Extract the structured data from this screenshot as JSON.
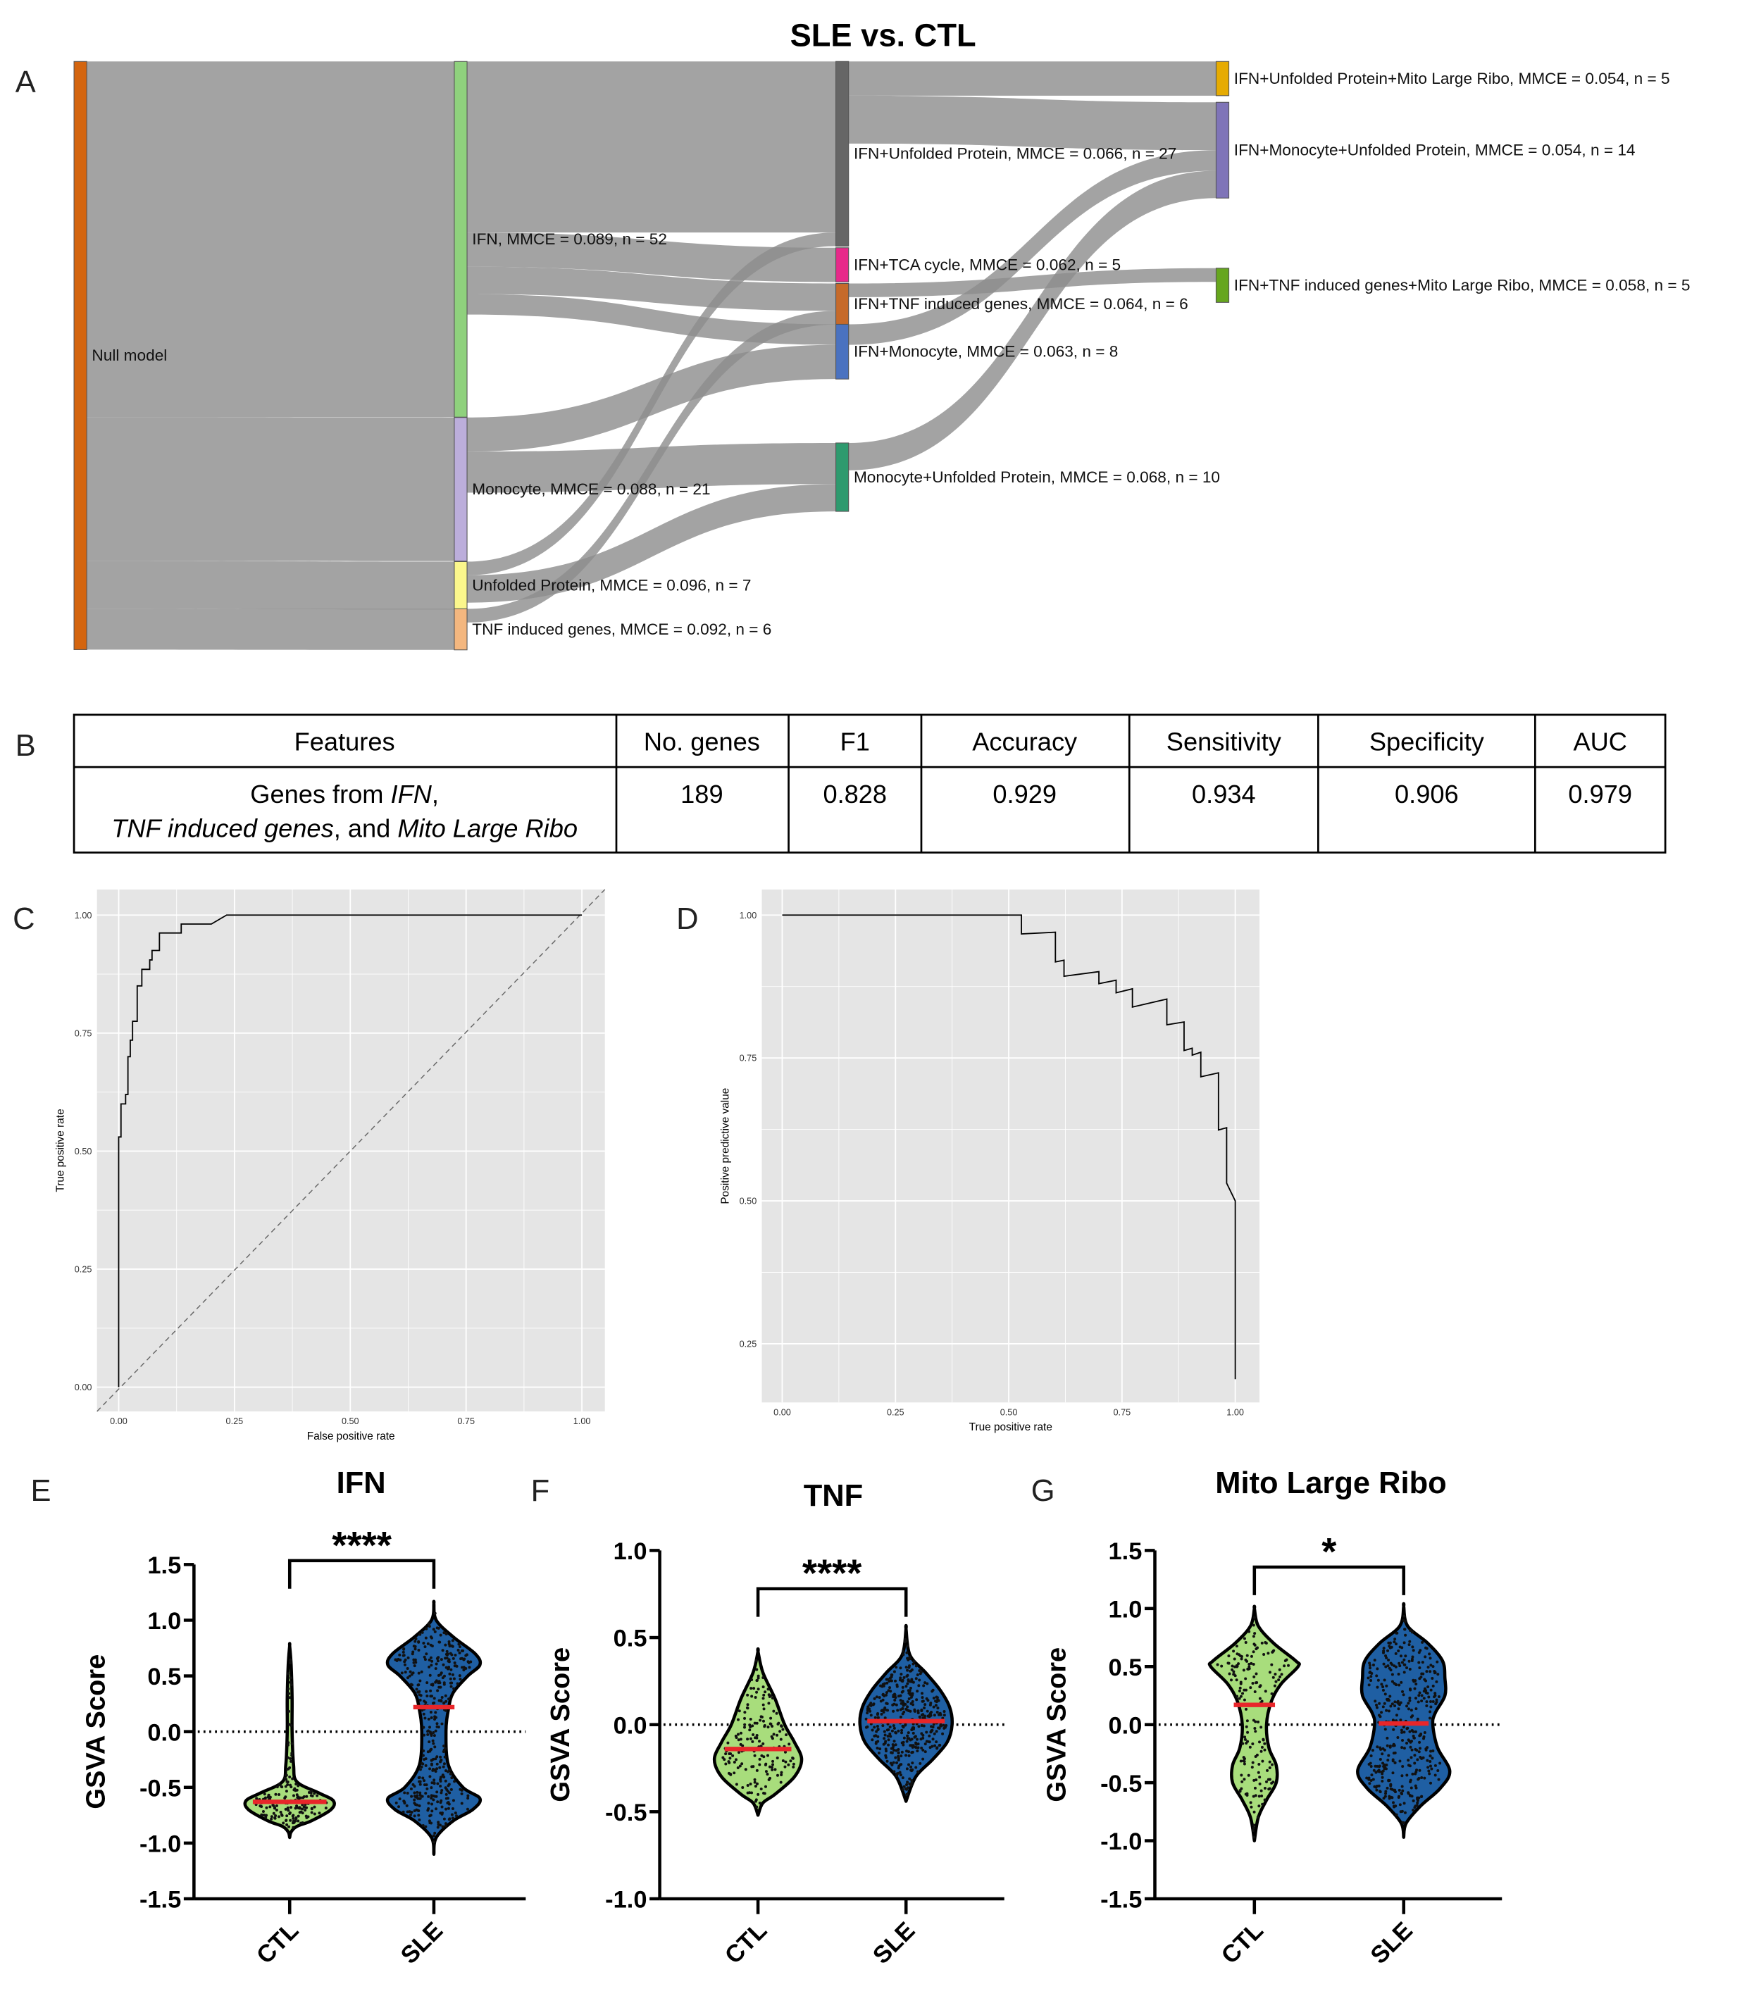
{
  "title": "SLE vs. CTL",
  "panel_labels": {
    "A": "A",
    "B": "B",
    "C": "C",
    "D": "D",
    "E": "E",
    "F": "F",
    "G": "G"
  },
  "sankey": {
    "nodes": [
      {
        "id": "null",
        "label": "Null model",
        "color": "#d4650f",
        "stage": 0,
        "n": 86
      },
      {
        "id": "ifn",
        "label": "IFN, MMCE = 0.089, n = 52",
        "color": "#8fd17d",
        "stage": 1,
        "n": 52
      },
      {
        "id": "mono",
        "label": "Monocyte, MMCE = 0.088, n = 21",
        "color": "#bcaedb",
        "stage": 1,
        "n": 21
      },
      {
        "id": "up",
        "label": "Unfolded Protein, MMCE = 0.096, n = 7",
        "color": "#fbf78c",
        "stage": 1,
        "n": 7
      },
      {
        "id": "tnf",
        "label": "TNF induced genes, MMCE = 0.092, n = 6",
        "color": "#f4b77f",
        "stage": 1,
        "n": 6
      },
      {
        "id": "ifn_up",
        "label": "IFN+Unfolded Protein, MMCE = 0.066, n = 27",
        "color": "#666666",
        "stage": 2,
        "n": 27
      },
      {
        "id": "ifn_tca",
        "label": "IFN+TCA cycle, MMCE = 0.062, n = 5",
        "color": "#e7298a",
        "stage": 2,
        "n": 5
      },
      {
        "id": "ifn_tnf",
        "label": "IFN+TNF induced genes, MMCE = 0.064, n = 6",
        "color": "#c66a2a",
        "stage": 2,
        "n": 6
      },
      {
        "id": "ifn_mono",
        "label": "IFN+Monocyte, MMCE = 0.063, n = 8",
        "color": "#4a72c0",
        "stage": 2,
        "n": 8
      },
      {
        "id": "mono_up",
        "label": "Monocyte+Unfolded Protein, MMCE = 0.068, n = 10",
        "color": "#2e9a6e",
        "stage": 2,
        "n": 10
      },
      {
        "id": "ifn_up_mito",
        "label": "IFN+Unfolded Protein+Mito Large Ribo, MMCE = 0.054, n = 5",
        "color": "#e6ab02",
        "stage": 3,
        "n": 5
      },
      {
        "id": "ifn_mono_up",
        "label": "IFN+Monocyte+Unfolded Protein, MMCE = 0.054, n = 14",
        "color": "#7f74b8",
        "stage": 3,
        "n": 14
      },
      {
        "id": "ifn_tnf_mito",
        "label": "IFN+TNF induced genes+Mito Large Ribo, MMCE = 0.058, n = 5",
        "color": "#66a61e",
        "stage": 3,
        "n": 5
      }
    ],
    "links": [
      {
        "source": "null",
        "target": "ifn",
        "value": 52
      },
      {
        "source": "null",
        "target": "mono",
        "value": 21
      },
      {
        "source": "null",
        "target": "up",
        "value": 7
      },
      {
        "source": "null",
        "target": "tnf",
        "value": 6
      },
      {
        "source": "ifn",
        "target": "ifn_up",
        "value": 25
      },
      {
        "source": "ifn",
        "target": "ifn_tca",
        "value": 5
      },
      {
        "source": "ifn",
        "target": "ifn_tnf",
        "value": 4
      },
      {
        "source": "ifn",
        "target": "ifn_mono",
        "value": 3
      },
      {
        "source": "mono",
        "target": "ifn_mono",
        "value": 5
      },
      {
        "source": "mono",
        "target": "mono_up",
        "value": 6
      },
      {
        "source": "up",
        "target": "ifn_up",
        "value": 2
      },
      {
        "source": "up",
        "target": "mono_up",
        "value": 4
      },
      {
        "source": "tnf",
        "target": "ifn_tnf",
        "value": 2
      },
      {
        "source": "ifn_up",
        "target": "ifn_up_mito",
        "value": 5
      },
      {
        "source": "ifn_up",
        "target": "ifn_mono_up",
        "value": 7
      },
      {
        "source": "ifn_mono",
        "target": "ifn_mono_up",
        "value": 3
      },
      {
        "source": "mono_up",
        "target": "ifn_mono_up",
        "value": 4
      },
      {
        "source": "ifn_tnf",
        "target": "ifn_tnf_mito",
        "value": 2
      }
    ]
  },
  "table": {
    "headers": [
      "Features",
      "No. genes",
      "F1",
      "Accuracy",
      "Sensitivity",
      "Specificity",
      "AUC"
    ],
    "row": {
      "features_line1_prefix": "Genes from ",
      "features_line1_italic": "IFN",
      "features_line1_suffix": ",",
      "features_line2_italic1": "TNF induced genes",
      "features_line2_mid": ", and ",
      "features_line2_italic2": "Mito Large Ribo",
      "values": [
        "189",
        "0.828",
        "0.929",
        "0.934",
        "0.906",
        "0.979"
      ]
    }
  },
  "chart_data": [
    {
      "id": "roc",
      "type": "line",
      "title": "",
      "xlabel": "False positive rate",
      "ylabel": "True positive rate",
      "xlim": [
        -0.05,
        1.05
      ],
      "ylim": [
        -0.05,
        1.05
      ],
      "xticks": [
        "0.00",
        "0.25",
        "0.50",
        "0.75",
        "1.00"
      ],
      "yticks": [
        "0.00",
        "0.25",
        "0.50",
        "0.75",
        "1.00"
      ],
      "grid": true,
      "diagonal_reference": true,
      "x": [
        0,
        0,
        0.005,
        0.005,
        0.015,
        0.015,
        0.02,
        0.02,
        0.025,
        0.025,
        0.03,
        0.03,
        0.04,
        0.04,
        0.05,
        0.05,
        0.067,
        0.067,
        0.072,
        0.072,
        0.088,
        0.088,
        0.135,
        0.135,
        0.2,
        0.233,
        1
      ],
      "y": [
        0,
        0.53,
        0.53,
        0.6,
        0.6,
        0.62,
        0.62,
        0.7,
        0.7,
        0.735,
        0.735,
        0.775,
        0.775,
        0.85,
        0.85,
        0.885,
        0.885,
        0.905,
        0.905,
        0.925,
        0.925,
        0.962,
        0.962,
        0.981,
        0.981,
        1,
        1
      ]
    },
    {
      "id": "pr",
      "type": "line",
      "title": "",
      "xlabel": "True positive rate",
      "ylabel": "Positive predictive value",
      "xlim": [
        -0.05,
        1.05
      ],
      "ylim": [
        0.15,
        1.045
      ],
      "xticks": [
        "0.00",
        "0.25",
        "0.50",
        "0.75",
        "1.00"
      ],
      "yticks": [
        "0.25",
        "0.50",
        "0.75",
        "1.00"
      ],
      "grid": true,
      "x": [
        0,
        0.528,
        0.528,
        0.603,
        0.603,
        0.622,
        0.622,
        0.699,
        0.699,
        0.737,
        0.737,
        0.773,
        0.773,
        0.849,
        0.849,
        0.887,
        0.887,
        0.905,
        0.905,
        0.924,
        0.924,
        0.963,
        0.963,
        0.981,
        0.981,
        1,
        1
      ],
      "y": [
        1,
        1,
        0.967,
        0.97,
        0.918,
        0.921,
        0.893,
        0.901,
        0.88,
        0.886,
        0.864,
        0.871,
        0.839,
        0.853,
        0.808,
        0.813,
        0.763,
        0.767,
        0.755,
        0.76,
        0.717,
        0.724,
        0.624,
        0.628,
        0.531,
        0.5,
        0.188
      ]
    },
    {
      "id": "ifn",
      "type": "violin",
      "title": "IFN",
      "ylabel": "GSVA Score",
      "ylim": [
        -1.5,
        1.5
      ],
      "yticks": [
        "1.5",
        "1.0",
        "0.5",
        "0.0",
        "-0.5",
        "-1.0",
        "-1.5"
      ],
      "significance": "****",
      "categories": [
        "CTL",
        "SLE"
      ],
      "colors": [
        "#a8dd7c",
        "#1f5fa3"
      ],
      "median_color": "#e8262a",
      "medians": [
        -0.63,
        0.22
      ],
      "density": [
        [
          [
            0.77,
            0
          ],
          [
            0.6,
            0.03
          ],
          [
            0.3,
            0.05
          ],
          [
            0,
            0.05
          ],
          [
            -0.3,
            0.08
          ],
          [
            -0.45,
            0.15
          ],
          [
            -0.55,
            0.6
          ],
          [
            -0.62,
            0.9
          ],
          [
            -0.7,
            0.85
          ],
          [
            -0.8,
            0.45
          ],
          [
            -0.85,
            0.15
          ],
          [
            -0.9,
            0.03
          ],
          [
            -0.95,
            0
          ]
        ],
        [
          [
            1.15,
            0
          ],
          [
            1.0,
            0.05
          ],
          [
            0.85,
            0.4
          ],
          [
            0.7,
            0.85
          ],
          [
            0.6,
            0.95
          ],
          [
            0.5,
            0.7
          ],
          [
            0.35,
            0.4
          ],
          [
            0.2,
            0.3
          ],
          [
            0,
            0.25
          ],
          [
            -0.3,
            0.3
          ],
          [
            -0.5,
            0.6
          ],
          [
            -0.6,
            0.95
          ],
          [
            -0.7,
            0.8
          ],
          [
            -0.8,
            0.4
          ],
          [
            -0.95,
            0.05
          ],
          [
            -1.1,
            0
          ]
        ]
      ]
    },
    {
      "id": "tnf",
      "type": "violin",
      "title": "TNF",
      "ylabel": "GSVA Score",
      "ylim": [
        -1.0,
        1.0
      ],
      "yticks": [
        "1.0",
        "0.5",
        "0.0",
        "-0.5",
        "-1.0"
      ],
      "significance": "****",
      "categories": [
        "CTL",
        "SLE"
      ],
      "colors": [
        "#a8dd7c",
        "#1f5fa3"
      ],
      "median_color": "#e8262a",
      "medians": [
        -0.14,
        0.02
      ],
      "density": [
        [
          [
            0.42,
            0
          ],
          [
            0.3,
            0.1
          ],
          [
            0.15,
            0.35
          ],
          [
            0,
            0.55
          ],
          [
            -0.1,
            0.75
          ],
          [
            -0.2,
            0.9
          ],
          [
            -0.3,
            0.75
          ],
          [
            -0.4,
            0.35
          ],
          [
            -0.45,
            0.1
          ],
          [
            -0.52,
            0
          ]
        ],
        [
          [
            0.55,
            0
          ],
          [
            0.4,
            0.08
          ],
          [
            0.3,
            0.4
          ],
          [
            0.2,
            0.7
          ],
          [
            0.1,
            0.9
          ],
          [
            0,
            0.95
          ],
          [
            -0.1,
            0.85
          ],
          [
            -0.2,
            0.55
          ],
          [
            -0.3,
            0.2
          ],
          [
            -0.44,
            0
          ]
        ]
      ]
    },
    {
      "id": "mito",
      "type": "violin",
      "title": "Mito Large Ribo",
      "ylabel": "GSVA Score",
      "ylim": [
        -1.5,
        1.5
      ],
      "yticks": [
        "1.5",
        "1.0",
        "0.5",
        "0.0",
        "-0.5",
        "-1.0",
        "-1.5"
      ],
      "significance": "*",
      "categories": [
        "CTL",
        "SLE"
      ],
      "colors": [
        "#a8dd7c",
        "#1f5fa3"
      ],
      "median_color": "#e8262a",
      "medians": [
        0.17,
        0.01
      ],
      "density": [
        [
          [
            1.0,
            0
          ],
          [
            0.85,
            0.08
          ],
          [
            0.7,
            0.4
          ],
          [
            0.55,
            0.85
          ],
          [
            0.5,
            0.9
          ],
          [
            0.35,
            0.55
          ],
          [
            0.2,
            0.35
          ],
          [
            0,
            0.25
          ],
          [
            -0.2,
            0.3
          ],
          [
            -0.35,
            0.45
          ],
          [
            -0.5,
            0.45
          ],
          [
            -0.65,
            0.25
          ],
          [
            -0.8,
            0.08
          ],
          [
            -1.0,
            0
          ]
        ],
        [
          [
            1.02,
            0
          ],
          [
            0.85,
            0.08
          ],
          [
            0.7,
            0.5
          ],
          [
            0.55,
            0.8
          ],
          [
            0.4,
            0.85
          ],
          [
            0.25,
            0.85
          ],
          [
            0.1,
            0.65
          ],
          [
            0,
            0.6
          ],
          [
            -0.2,
            0.7
          ],
          [
            -0.4,
            0.95
          ],
          [
            -0.55,
            0.75
          ],
          [
            -0.7,
            0.35
          ],
          [
            -0.85,
            0.05
          ],
          [
            -0.97,
            0
          ]
        ]
      ]
    }
  ]
}
